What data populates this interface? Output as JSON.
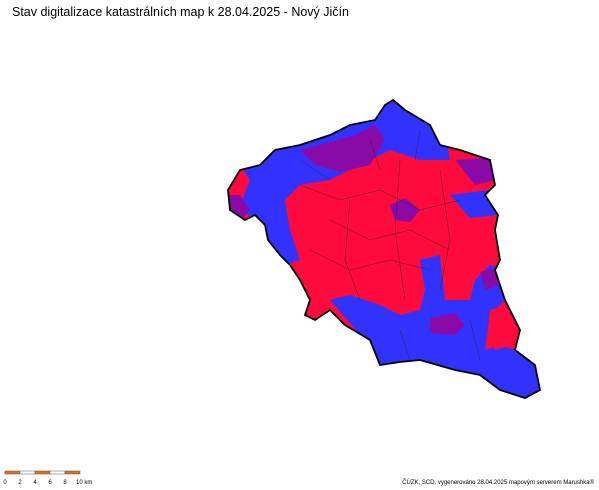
{
  "header": {
    "title": "Stav digitalizace katastrálních map k 28.04.2025 - Nový Jičín"
  },
  "scale_bar": {
    "labels": [
      "0",
      "2",
      "4",
      "6",
      "8",
      "10 km"
    ]
  },
  "footer": {
    "credit": "ČÚZK, SCD, vygenerováno 28.04.2025 mapovým serverem Marushka®"
  }
}
